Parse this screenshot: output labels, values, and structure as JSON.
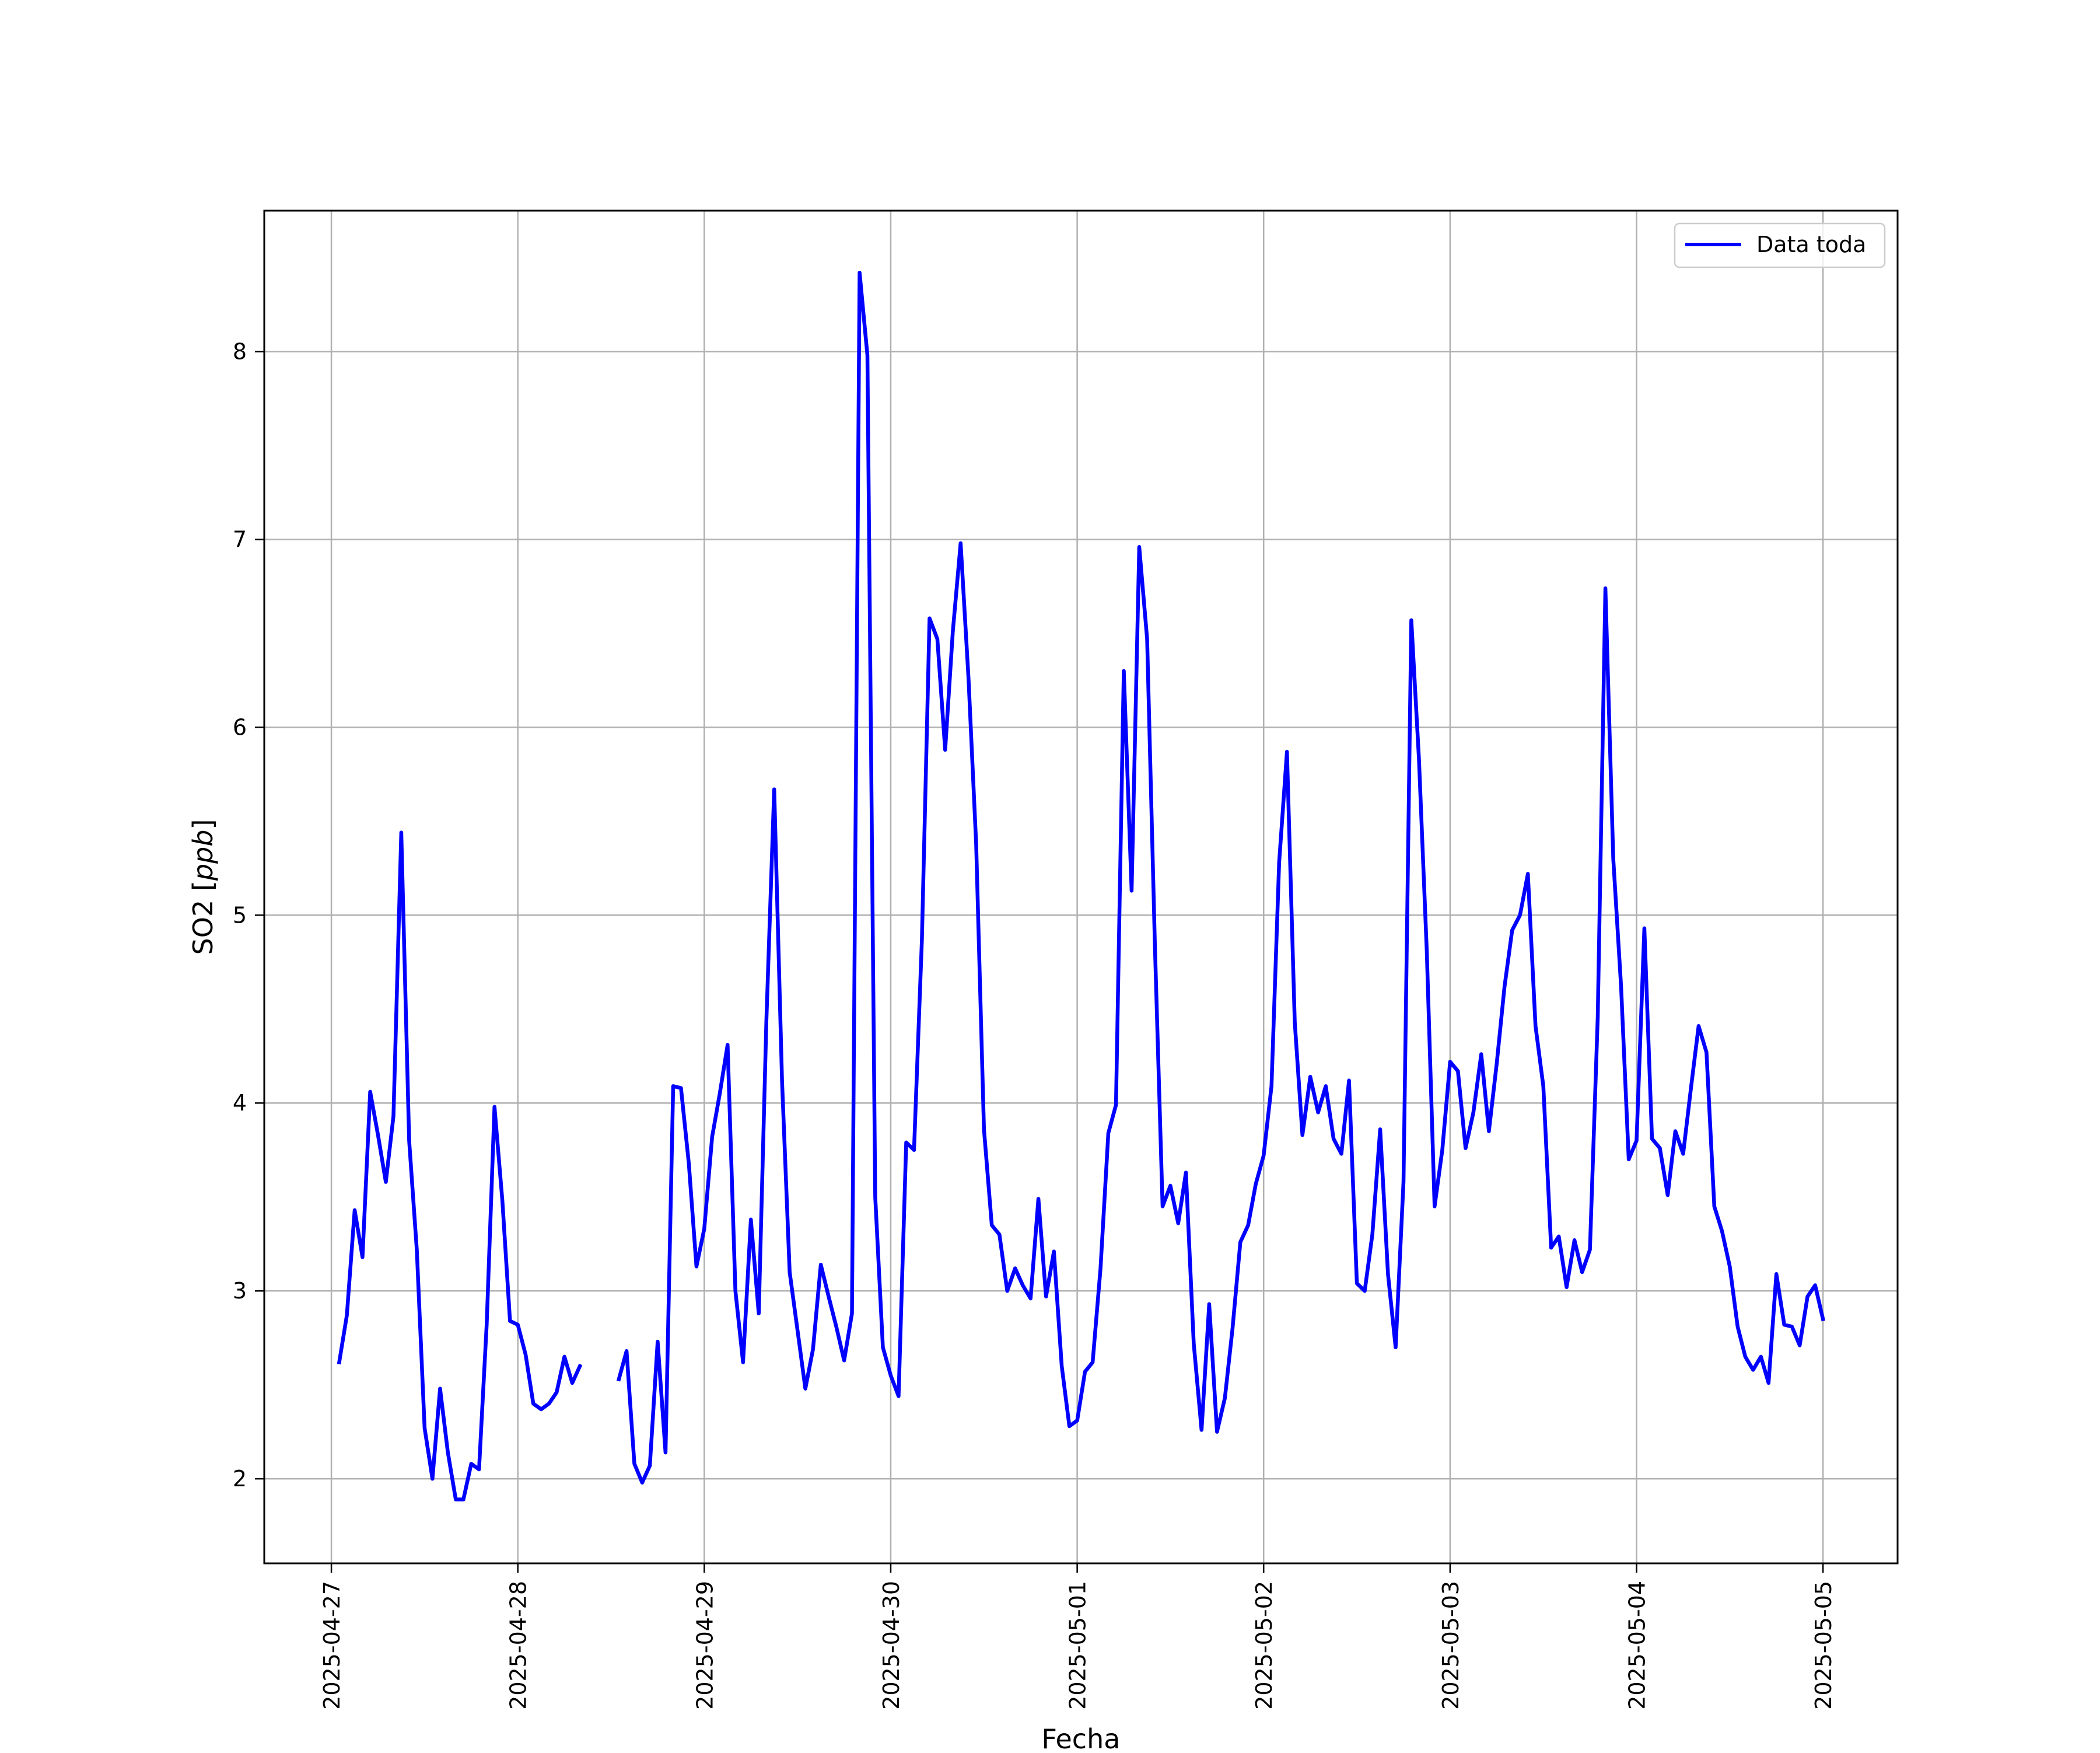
{
  "chart_data": {
    "type": "line",
    "title": "",
    "xlabel": "Fecha",
    "ylabel": "SO2",
    "ylabel_unit": "ppb",
    "x_ticks": [
      "2025-04-27",
      "2025-04-28",
      "2025-04-29",
      "2025-04-30",
      "2025-05-01",
      "2025-05-02",
      "2025-05-03",
      "2025-05-04",
      "2025-05-05"
    ],
    "x_range_days": [
      -0.36,
      8.4
    ],
    "y_ticks": [
      2,
      3,
      4,
      5,
      6,
      7,
      8
    ],
    "ylim": [
      1.55,
      8.75
    ],
    "grid": true,
    "legend_position": "top-right",
    "color": "#0000ff",
    "series": [
      {
        "name": "Data toda",
        "segments": [
          [
            [
              0.042,
              2.62
            ],
            [
              0.083,
              2.87
            ],
            [
              0.125,
              3.43
            ],
            [
              0.167,
              3.18
            ],
            [
              0.208,
              4.06
            ],
            [
              0.25,
              3.83
            ],
            [
              0.292,
              3.58
            ],
            [
              0.333,
              3.93
            ],
            [
              0.375,
              5.44
            ],
            [
              0.417,
              3.8
            ],
            [
              0.458,
              3.22
            ],
            [
              0.5,
              2.27
            ],
            [
              0.542,
              2.0
            ],
            [
              0.583,
              2.48
            ],
            [
              0.625,
              2.14
            ],
            [
              0.667,
              1.89
            ],
            [
              0.708,
              1.89
            ],
            [
              0.75,
              2.08
            ],
            [
              0.792,
              2.05
            ],
            [
              0.833,
              2.82
            ],
            [
              0.875,
              3.98
            ],
            [
              0.917,
              3.48
            ],
            [
              0.958,
              2.84
            ],
            [
              1.0,
              2.82
            ],
            [
              1.042,
              2.66
            ],
            [
              1.083,
              2.4
            ],
            [
              1.125,
              2.37
            ],
            [
              1.167,
              2.4
            ],
            [
              1.208,
              2.46
            ],
            [
              1.25,
              2.65
            ],
            [
              1.292,
              2.51
            ],
            [
              1.333,
              2.6
            ]
          ],
          [
            [
              1.542,
              2.53
            ],
            [
              1.583,
              2.68
            ],
            [
              1.625,
              2.08
            ],
            [
              1.667,
              1.98
            ],
            [
              1.708,
              2.07
            ],
            [
              1.75,
              2.73
            ],
            [
              1.792,
              2.14
            ],
            [
              1.833,
              4.09
            ],
            [
              1.875,
              4.08
            ],
            [
              1.917,
              3.68
            ],
            [
              1.958,
              3.13
            ],
            [
              2.0,
              3.33
            ],
            [
              2.042,
              3.82
            ],
            [
              2.083,
              4.05
            ],
            [
              2.125,
              4.31
            ],
            [
              2.167,
              3.0
            ],
            [
              2.208,
              2.62
            ],
            [
              2.25,
              3.38
            ],
            [
              2.292,
              2.88
            ],
            [
              2.333,
              4.44
            ],
            [
              2.375,
              5.67
            ],
            [
              2.417,
              4.12
            ],
            [
              2.458,
              3.1
            ],
            [
              2.5,
              2.79
            ],
            [
              2.542,
              2.48
            ],
            [
              2.583,
              2.69
            ],
            [
              2.625,
              3.14
            ],
            [
              2.667,
              2.97
            ],
            [
              2.708,
              2.81
            ],
            [
              2.75,
              2.63
            ],
            [
              2.792,
              2.88
            ],
            [
              2.833,
              8.42
            ],
            [
              2.875,
              7.98
            ],
            [
              2.917,
              3.5
            ],
            [
              2.958,
              2.7
            ],
            [
              3.0,
              2.55
            ],
            [
              3.042,
              2.44
            ],
            [
              3.083,
              3.79
            ],
            [
              3.125,
              3.75
            ],
            [
              3.167,
              4.87
            ],
            [
              3.208,
              6.58
            ],
            [
              3.25,
              6.47
            ],
            [
              3.292,
              5.88
            ],
            [
              3.333,
              6.51
            ],
            [
              3.375,
              6.98
            ],
            [
              3.417,
              6.26
            ],
            [
              3.458,
              5.38
            ],
            [
              3.5,
              3.86
            ],
            [
              3.542,
              3.35
            ],
            [
              3.583,
              3.3
            ],
            [
              3.625,
              3.0
            ],
            [
              3.667,
              3.12
            ],
            [
              3.708,
              3.03
            ],
            [
              3.75,
              2.96
            ],
            [
              3.792,
              3.49
            ],
            [
              3.833,
              2.97
            ],
            [
              3.875,
              3.21
            ],
            [
              3.917,
              2.6
            ],
            [
              3.958,
              2.28
            ],
            [
              4.0,
              2.31
            ],
            [
              4.042,
              2.57
            ],
            [
              4.083,
              2.62
            ],
            [
              4.125,
              3.12
            ],
            [
              4.167,
              3.84
            ],
            [
              4.208,
              3.99
            ],
            [
              4.25,
              6.3
            ],
            [
              4.292,
              5.13
            ],
            [
              4.333,
              6.96
            ],
            [
              4.375,
              6.47
            ],
            [
              4.417,
              4.83
            ],
            [
              4.458,
              3.45
            ],
            [
              4.5,
              3.56
            ],
            [
              4.542,
              3.36
            ],
            [
              4.583,
              3.63
            ],
            [
              4.625,
              2.72
            ],
            [
              4.667,
              2.26
            ],
            [
              4.708,
              2.93
            ],
            [
              4.75,
              2.25
            ],
            [
              4.792,
              2.43
            ],
            [
              4.833,
              2.8
            ],
            [
              4.875,
              3.26
            ],
            [
              4.917,
              3.35
            ],
            [
              4.958,
              3.57
            ],
            [
              5.0,
              3.72
            ],
            [
              5.042,
              4.09
            ],
            [
              5.083,
              5.28
            ],
            [
              5.125,
              5.87
            ],
            [
              5.167,
              4.43
            ],
            [
              5.208,
              3.83
            ],
            [
              5.25,
              4.14
            ],
            [
              5.292,
              3.95
            ],
            [
              5.333,
              4.09
            ],
            [
              5.375,
              3.81
            ],
            [
              5.417,
              3.73
            ],
            [
              5.458,
              4.12
            ],
            [
              5.5,
              3.04
            ],
            [
              5.542,
              3.0
            ],
            [
              5.583,
              3.3
            ],
            [
              5.625,
              3.86
            ],
            [
              5.667,
              3.09
            ],
            [
              5.708,
              2.7
            ],
            [
              5.75,
              3.58
            ],
            [
              5.792,
              6.57
            ],
            [
              5.833,
              5.83
            ],
            [
              5.875,
              4.81
            ],
            [
              5.917,
              3.45
            ],
            [
              5.958,
              3.75
            ],
            [
              6.0,
              4.22
            ],
            [
              6.042,
              4.17
            ],
            [
              6.083,
              3.76
            ],
            [
              6.125,
              3.95
            ],
            [
              6.167,
              4.26
            ],
            [
              6.208,
              3.85
            ],
            [
              6.25,
              4.21
            ],
            [
              6.292,
              4.62
            ],
            [
              6.333,
              4.92
            ],
            [
              6.375,
              5.0
            ],
            [
              6.417,
              5.22
            ],
            [
              6.458,
              4.41
            ],
            [
              6.5,
              4.09
            ],
            [
              6.542,
              3.23
            ],
            [
              6.583,
              3.29
            ],
            [
              6.625,
              3.02
            ],
            [
              6.667,
              3.27
            ],
            [
              6.708,
              3.1
            ],
            [
              6.75,
              3.22
            ],
            [
              6.792,
              4.46
            ],
            [
              6.833,
              6.74
            ],
            [
              6.875,
              5.3
            ],
            [
              6.917,
              4.62
            ],
            [
              6.958,
              3.7
            ],
            [
              7.0,
              3.8
            ],
            [
              7.042,
              4.93
            ],
            [
              7.083,
              3.81
            ],
            [
              7.125,
              3.76
            ],
            [
              7.167,
              3.51
            ],
            [
              7.208,
              3.85
            ],
            [
              7.25,
              3.73
            ],
            [
              7.292,
              4.08
            ],
            [
              7.333,
              4.41
            ],
            [
              7.375,
              4.27
            ],
            [
              7.417,
              3.45
            ],
            [
              7.458,
              3.32
            ],
            [
              7.5,
              3.13
            ],
            [
              7.542,
              2.81
            ],
            [
              7.583,
              2.65
            ],
            [
              7.625,
              2.58
            ],
            [
              7.667,
              2.65
            ],
            [
              7.708,
              2.51
            ],
            [
              7.75,
              3.09
            ],
            [
              7.792,
              2.82
            ],
            [
              7.833,
              2.81
            ],
            [
              7.875,
              2.71
            ],
            [
              7.917,
              2.97
            ],
            [
              7.958,
              3.03
            ],
            [
              8.0,
              2.85
            ]
          ]
        ]
      }
    ]
  }
}
